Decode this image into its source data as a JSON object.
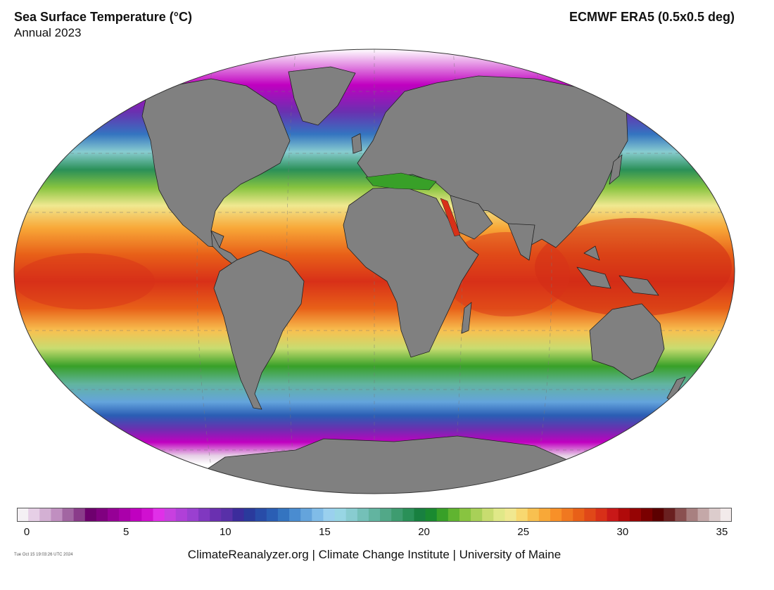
{
  "header": {
    "title": "Sea Surface Temperature (°C)",
    "period": "Annual 2023",
    "source": "ECMWF ERA5 (0.5x0.5 deg)"
  },
  "colorbar": {
    "ticks": [
      "0",
      "5",
      "10",
      "15",
      "20",
      "25",
      "30",
      "35"
    ],
    "range": [
      0,
      35
    ],
    "colors": [
      "#f4f0f4",
      "#e6cfe6",
      "#d3b0d3",
      "#c08fc0",
      "#a266a2",
      "#8a3c8a",
      "#6e006e",
      "#800080",
      "#960096",
      "#aa00aa",
      "#c000c0",
      "#d010d0",
      "#e030e8",
      "#c840e0",
      "#b040d8",
      "#9a40d0",
      "#8038c0",
      "#6a30b0",
      "#5830a8",
      "#3c2c9c",
      "#2a3a9c",
      "#284ca8",
      "#2a5eb4",
      "#3474c0",
      "#4a8cd0",
      "#64a4dc",
      "#80bce8",
      "#9ad0ee",
      "#98d6e4",
      "#88ccd0",
      "#74c0b8",
      "#62b4a0",
      "#52a888",
      "#3e9c70",
      "#2a9058",
      "#188040",
      "#1a8a30",
      "#38a028",
      "#60b430",
      "#88c440",
      "#a8d058",
      "#c8dc70",
      "#e0e888",
      "#f0e890",
      "#f8d870",
      "#f8c050",
      "#f8a838",
      "#f89028",
      "#f07820",
      "#e86018",
      "#e04818",
      "#d83018",
      "#c81818",
      "#b00a0a",
      "#960404",
      "#7a0000",
      "#5c0000",
      "#6a2020",
      "#8a5050",
      "#a88080",
      "#c4a8a8",
      "#dccccc",
      "#f2eaea"
    ]
  },
  "map": {
    "projection": "Robinson",
    "land_color": "#808080",
    "ice_color": "#ffffff"
  },
  "footer": {
    "timestamp": "Tue Oct 15 19:03:26 UTC 2024",
    "credits": "ClimateReanalyzer.org | Climate Change Institute | University of Maine"
  }
}
